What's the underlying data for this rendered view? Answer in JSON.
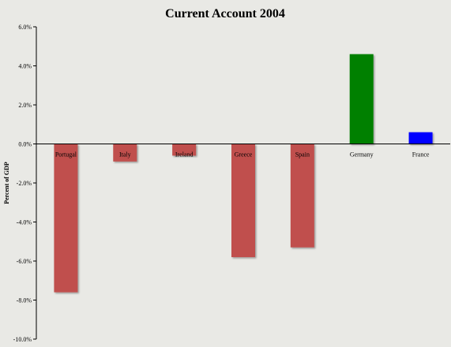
{
  "chart_data": {
    "type": "bar",
    "title": "Current Account 2004",
    "xlabel": "",
    "ylabel": "Percent of GDP",
    "categories": [
      "Portugal",
      "Italy",
      "Ireland",
      "Greece",
      "Spain",
      "Germany",
      "France"
    ],
    "values": [
      -7.6,
      -0.9,
      -0.6,
      -5.8,
      -5.3,
      4.6,
      0.6
    ],
    "colors": [
      "#c0504d",
      "#c0504d",
      "#c0504d",
      "#c0504d",
      "#c0504d",
      "#008000",
      "#0000ff"
    ],
    "ylim": [
      -10,
      6
    ],
    "yticks": [
      6,
      4,
      2,
      0,
      -2,
      -4,
      -6,
      -8,
      -10
    ],
    "ytick_labels": [
      "6.0%",
      "4.0%",
      "2.0%",
      "0.0%",
      "-2.0%",
      "-4.0%",
      "-6.0%",
      "-8.0%",
      "-10.0%"
    ],
    "grid": false,
    "legend": "none",
    "background": "#e9e9e5"
  }
}
